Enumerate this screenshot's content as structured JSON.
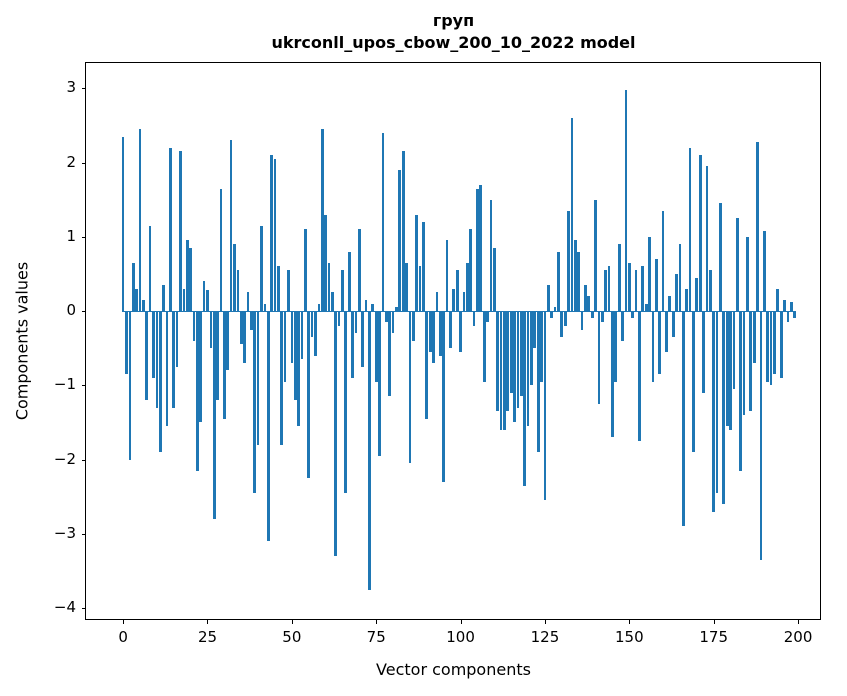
{
  "figure": {
    "title": "груп",
    "subtitle": "ukrconll_upos_cbow_200_10_2022 model"
  },
  "chart_data": {
    "type": "bar",
    "title": "груп",
    "subtitle": "ukrconll_upos_cbow_200_10_2022 model",
    "xlabel": "Vector components",
    "ylabel": "Components values",
    "bar_color": "#1f77b4",
    "bar_width": 0.8,
    "x_start": 0,
    "xlim": [
      -11,
      206.8
    ],
    "ylim": [
      -4.16,
      3.34
    ],
    "xticks": [
      0,
      25,
      50,
      75,
      100,
      125,
      150,
      175,
      200
    ],
    "yticks": [
      -4,
      -3,
      -2,
      -1,
      0,
      1,
      2,
      3
    ],
    "grid": false,
    "legend": null,
    "values": [
      2.35,
      -0.85,
      -2.0,
      0.65,
      0.3,
      2.45,
      0.15,
      -1.2,
      1.15,
      -0.9,
      -1.3,
      -1.9,
      0.35,
      -1.55,
      2.2,
      -1.3,
      -0.75,
      2.15,
      0.3,
      0.95,
      0.85,
      -0.4,
      -2.15,
      -1.5,
      0.4,
      0.28,
      -0.5,
      -2.8,
      -1.2,
      1.65,
      -1.45,
      -0.8,
      2.3,
      0.9,
      0.55,
      -0.45,
      -0.7,
      0.25,
      -0.25,
      -2.45,
      -1.8,
      1.15,
      0.1,
      -3.1,
      2.1,
      2.05,
      0.6,
      -1.8,
      -0.95,
      0.55,
      -0.7,
      -1.2,
      -1.55,
      -0.65,
      1.1,
      -2.25,
      -0.35,
      -0.6,
      0.1,
      2.45,
      1.3,
      0.65,
      0.25,
      -3.3,
      -0.2,
      0.55,
      -2.45,
      0.8,
      -0.9,
      -0.3,
      1.1,
      -0.75,
      0.15,
      -3.75,
      0.1,
      -0.95,
      -1.95,
      2.4,
      -0.15,
      -1.15,
      -0.3,
      0.05,
      1.9,
      2.15,
      0.65,
      -2.05,
      -0.4,
      1.3,
      0.6,
      1.2,
      -1.45,
      -0.55,
      -0.7,
      0.25,
      -0.6,
      -2.3,
      0.95,
      -0.5,
      0.3,
      0.55,
      -0.55,
      0.25,
      0.65,
      1.1,
      -0.2,
      1.65,
      1.7,
      -0.95,
      -0.15,
      1.5,
      0.85,
      -1.35,
      -1.6,
      -1.6,
      -1.35,
      -1.1,
      -1.5,
      -1.3,
      -1.15,
      -2.35,
      -1.55,
      -1.0,
      -0.5,
      -1.9,
      -0.95,
      -2.55,
      0.35,
      -0.1,
      0.05,
      0.8,
      -0.35,
      -0.2,
      1.35,
      2.6,
      0.95,
      0.8,
      -0.25,
      0.35,
      0.2,
      -0.1,
      1.5,
      -1.25,
      -0.15,
      0.55,
      0.6,
      -1.7,
      -0.95,
      0.9,
      -0.4,
      2.98,
      0.65,
      -0.1,
      0.55,
      -1.75,
      0.6,
      0.1,
      1.0,
      -0.95,
      0.7,
      -0.85,
      1.35,
      -0.55,
      0.2,
      -0.35,
      0.5,
      0.9,
      -2.9,
      0.3,
      2.2,
      -1.9,
      0.45,
      2.1,
      -1.1,
      1.95,
      0.55,
      -2.7,
      -2.45,
      1.45,
      -2.6,
      -1.55,
      -1.6,
      -1.05,
      1.25,
      -2.15,
      -1.4,
      1.0,
      -1.35,
      -0.7,
      2.28,
      -3.35,
      1.08,
      -0.95,
      -1.0,
      -0.85,
      0.3,
      -0.9,
      0.15,
      -0.15,
      0.12,
      -0.1
    ]
  }
}
